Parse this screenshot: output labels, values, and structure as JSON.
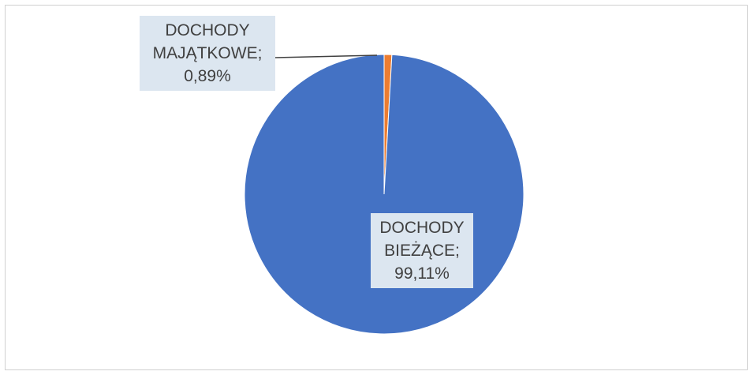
{
  "chart_data": {
    "type": "pie",
    "slices": [
      {
        "label_lines": [
          "DOCHODY",
          "BIEŻĄCE;",
          "99,11%"
        ],
        "value": 99.11,
        "color": "#4472c4"
      },
      {
        "label_lines": [
          "DOCHODY",
          "MAJĄTKOWE;",
          "0,89%"
        ],
        "value": 0.89,
        "color": "#ed7d31"
      }
    ],
    "legend": "none"
  }
}
